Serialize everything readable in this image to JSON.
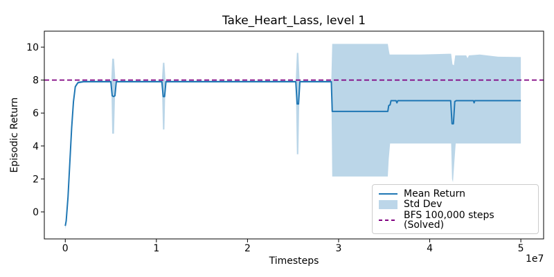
{
  "chart_data": {
    "type": "line",
    "title": "Take_Heart_Lass, level 1",
    "xlabel": "Timesteps",
    "ylabel": "Episodic Return",
    "x_offset_label": "1e7",
    "xlim": [
      -0.23,
      5.25
    ],
    "ylim": [
      -1.64,
      10.97
    ],
    "grid": false,
    "xticks": {
      "values": [
        0,
        1,
        2,
        3,
        4,
        5
      ],
      "labels": [
        "0",
        "1",
        "2",
        "3",
        "4",
        "5"
      ]
    },
    "yticks": {
      "values": [
        0,
        2,
        4,
        6,
        8,
        10
      ],
      "labels": [
        "0",
        "2",
        "4",
        "6",
        "8",
        "10"
      ]
    },
    "legend": {
      "position": "lower right",
      "entries": [
        {
          "label": "Mean Return",
          "type": "line",
          "color": "#1f77b4"
        },
        {
          "label": "Std Dev",
          "type": "patch",
          "color": "#bcd6e9"
        },
        {
          "label": "BFS 100,000 steps (Solved)",
          "type": "dashed-line",
          "color": "#800080"
        }
      ]
    },
    "bfs_line": {
      "label": "BFS 100,000 steps (Solved)",
      "y": 8.0,
      "color": "#800080",
      "style": "dashed"
    },
    "series": [
      {
        "name": "Mean Return",
        "color": "#1f77b4",
        "points": [
          [
            0.0,
            -0.85
          ],
          [
            0.01,
            -0.55
          ],
          [
            0.03,
            0.9
          ],
          [
            0.05,
            3.0
          ],
          [
            0.07,
            5.1
          ],
          [
            0.09,
            6.7
          ],
          [
            0.11,
            7.6
          ],
          [
            0.14,
            7.85
          ],
          [
            0.2,
            7.9
          ],
          [
            0.5,
            7.9
          ],
          [
            0.515,
            7.05
          ],
          [
            0.53,
            7.0
          ],
          [
            0.545,
            7.05
          ],
          [
            0.56,
            7.9
          ],
          [
            1.06,
            7.9
          ],
          [
            1.075,
            7.0
          ],
          [
            1.09,
            7.0
          ],
          [
            1.105,
            7.9
          ],
          [
            2.53,
            7.9
          ],
          [
            2.545,
            6.55
          ],
          [
            2.56,
            6.55
          ],
          [
            2.575,
            7.9
          ],
          [
            2.92,
            7.9
          ],
          [
            2.93,
            6.1
          ],
          [
            3.54,
            6.1
          ],
          [
            3.55,
            6.45
          ],
          [
            3.565,
            6.5
          ],
          [
            3.575,
            6.75
          ],
          [
            3.63,
            6.75
          ],
          [
            3.64,
            6.62
          ],
          [
            3.65,
            6.75
          ],
          [
            4.23,
            6.75
          ],
          [
            4.245,
            5.35
          ],
          [
            4.26,
            5.35
          ],
          [
            4.275,
            6.7
          ],
          [
            4.29,
            6.75
          ],
          [
            4.48,
            6.75
          ],
          [
            4.487,
            6.62
          ],
          [
            4.495,
            6.75
          ],
          [
            5.0,
            6.75
          ]
        ]
      }
    ],
    "band": {
      "name": "Std Dev",
      "color": "rgba(31,119,180,0.3)",
      "upper": [
        [
          0.0,
          -0.65
        ],
        [
          0.01,
          -0.35
        ],
        [
          0.03,
          1.1
        ],
        [
          0.05,
          3.2
        ],
        [
          0.07,
          5.3
        ],
        [
          0.09,
          6.9
        ],
        [
          0.11,
          7.7
        ],
        [
          0.14,
          7.92
        ],
        [
          0.2,
          7.97
        ],
        [
          0.505,
          7.97
        ],
        [
          0.515,
          9.3
        ],
        [
          0.535,
          9.3
        ],
        [
          0.55,
          7.97
        ],
        [
          1.06,
          7.97
        ],
        [
          1.072,
          9.05
        ],
        [
          1.088,
          9.05
        ],
        [
          1.1,
          7.97
        ],
        [
          2.53,
          7.97
        ],
        [
          2.542,
          9.65
        ],
        [
          2.558,
          9.65
        ],
        [
          2.572,
          7.97
        ],
        [
          2.92,
          7.97
        ],
        [
          2.93,
          10.2
        ],
        [
          3.54,
          10.2
        ],
        [
          3.55,
          9.85
        ],
        [
          3.56,
          9.55
        ],
        [
          3.9,
          9.55
        ],
        [
          4.21,
          9.6
        ],
        [
          4.235,
          9.6
        ],
        [
          4.25,
          8.95
        ],
        [
          4.265,
          8.9
        ],
        [
          4.28,
          9.5
        ],
        [
          4.4,
          9.5
        ],
        [
          4.415,
          9.33
        ],
        [
          4.43,
          9.5
        ],
        [
          4.55,
          9.55
        ],
        [
          4.75,
          9.42
        ],
        [
          5.0,
          9.4
        ]
      ],
      "lower": [
        [
          0.0,
          -1.05
        ],
        [
          0.01,
          -0.75
        ],
        [
          0.03,
          0.7
        ],
        [
          0.05,
          2.8
        ],
        [
          0.07,
          4.9
        ],
        [
          0.09,
          6.5
        ],
        [
          0.11,
          7.5
        ],
        [
          0.14,
          7.78
        ],
        [
          0.2,
          7.85
        ],
        [
          0.505,
          7.85
        ],
        [
          0.515,
          4.75
        ],
        [
          0.535,
          4.75
        ],
        [
          0.55,
          7.85
        ],
        [
          1.06,
          7.85
        ],
        [
          1.072,
          5.0
        ],
        [
          1.088,
          5.0
        ],
        [
          1.1,
          7.85
        ],
        [
          2.53,
          7.85
        ],
        [
          2.542,
          3.5
        ],
        [
          2.558,
          3.5
        ],
        [
          2.572,
          7.85
        ],
        [
          2.92,
          7.85
        ],
        [
          2.93,
          2.15
        ],
        [
          3.54,
          2.15
        ],
        [
          3.55,
          3.2
        ],
        [
          3.565,
          4.15
        ],
        [
          4.21,
          4.15
        ],
        [
          4.235,
          4.15
        ],
        [
          4.245,
          2.0
        ],
        [
          4.255,
          1.8
        ],
        [
          4.27,
          3.0
        ],
        [
          4.285,
          4.15
        ],
        [
          5.0,
          4.15
        ]
      ]
    }
  }
}
